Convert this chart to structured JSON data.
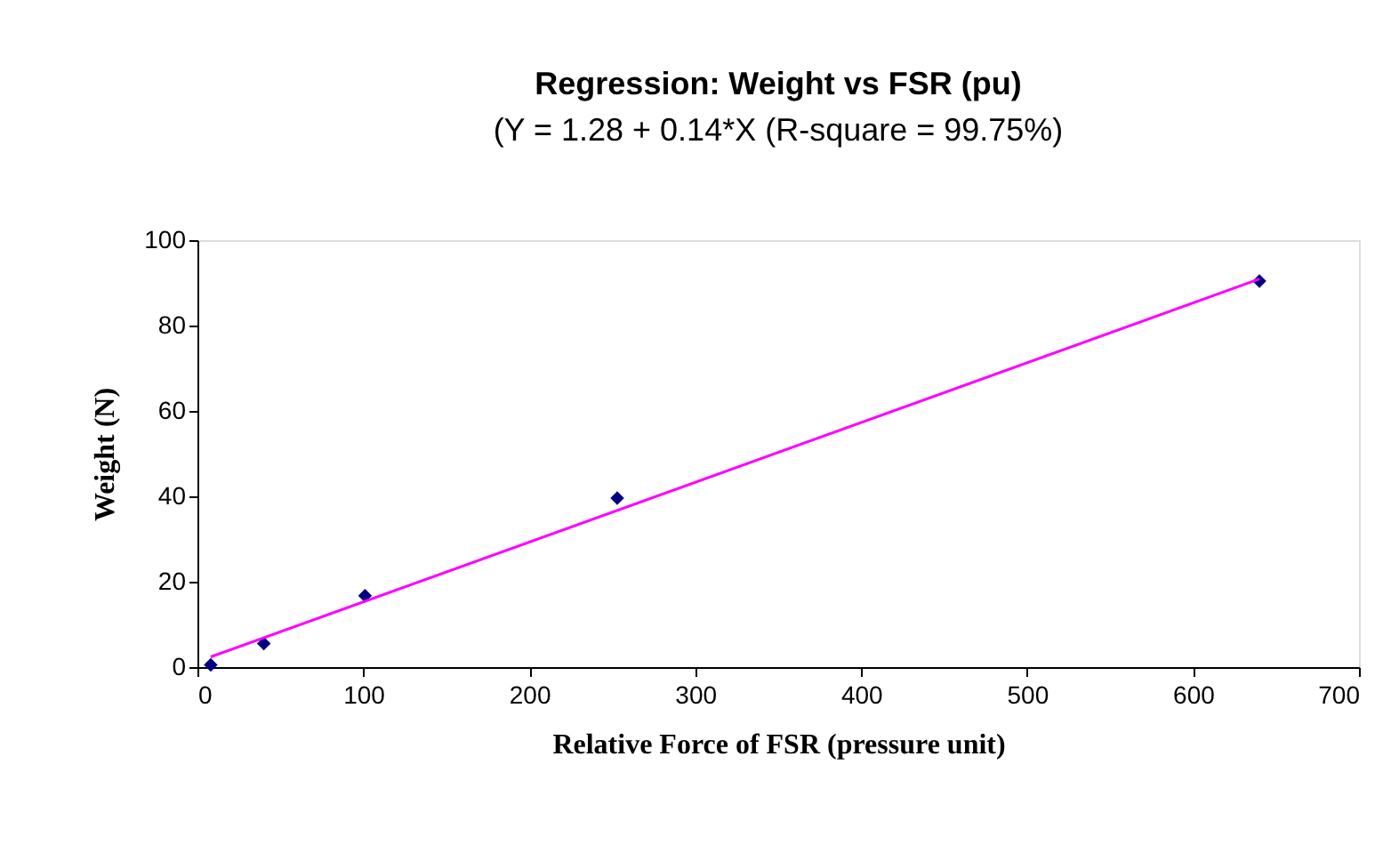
{
  "chart_data": {
    "type": "scatter",
    "title": "Regression: Weight vs FSR (pu)",
    "subtitle": "(Y = 1.28 + 0.14*X (R-square = 99.75%)",
    "xlabel": "Relative Force of FSR (pressure unit)",
    "ylabel": "Weight (N)",
    "x": [
      8,
      40,
      101,
      253,
      640
    ],
    "series": [
      {
        "color": "#000080",
        "marker": "diamond",
        "values": [
          0.5,
          5.5,
          16.7,
          39.6,
          90.4
        ]
      },
      {
        "type": "line",
        "color": "#ff00ff",
        "marker": "none",
        "line_style": "solid",
        "x": [
          8,
          640
        ],
        "values": [
          2.4,
          90.9
        ]
      }
    ],
    "xlim": [
      0,
      700
    ],
    "xticks": [
      0,
      100,
      200,
      300,
      400,
      500,
      600,
      700
    ],
    "ylim": [
      0,
      100
    ],
    "yticks": [
      0,
      20,
      40,
      60,
      80,
      100
    ],
    "grid": false
  }
}
